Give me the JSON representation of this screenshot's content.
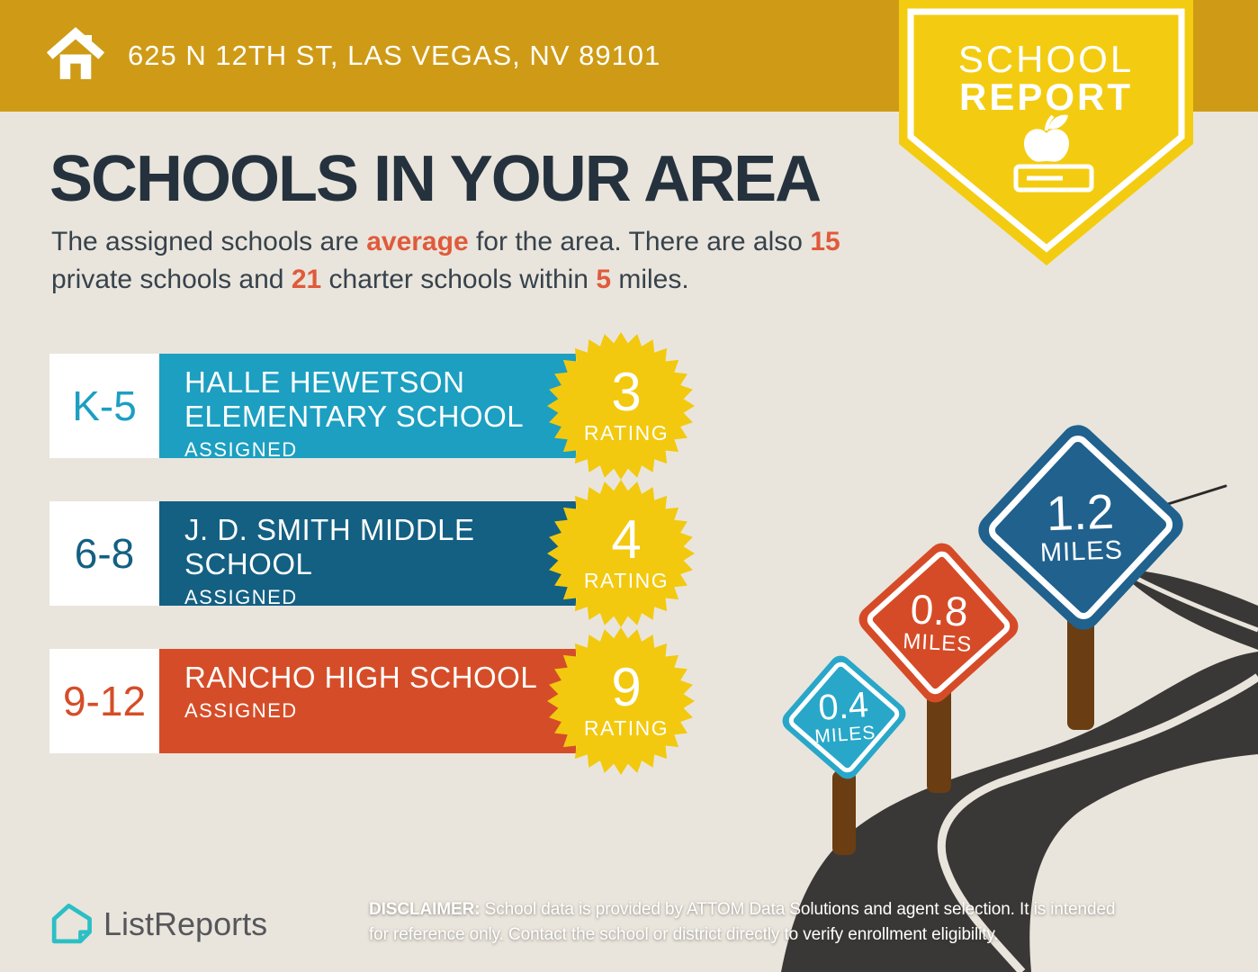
{
  "colors": {
    "banner_gold": "#CF9B16",
    "ribbon_yellow": "#F3CC12",
    "background_beige": "#E9E5DC",
    "heading_navy": "#25323E",
    "body_text": "#37424C",
    "accent_orange": "#E05A3B",
    "elementary_teal": "#1C9FC1",
    "middle_blue": "#136083",
    "high_orange": "#D54D28",
    "rating_badge_yellow": "#F2C90E",
    "road_dark": "#3A3836",
    "road_line_cream": "#E9E5DC",
    "post_brown": "#6B3D12",
    "sign_teal": "#28A7C9",
    "sign_orange": "#D64B27",
    "sign_blue": "#20618E",
    "logo_teal": "#2BBFC4",
    "logo_text_gray": "#56565B"
  },
  "banner": {
    "address": "625 N 12TH ST, LAS VEGAS, NV 89101"
  },
  "report_badge": {
    "line1": "SCHOOL",
    "line2": "REPORT"
  },
  "main": {
    "heading": "SCHOOLS IN YOUR AREA",
    "intro": {
      "seg1": "The assigned schools are ",
      "highlight1": "average",
      "seg2": " for the area. There are also ",
      "highlight2": "15",
      "seg3": "private schools and ",
      "highlight3": "21",
      "seg4": " charter schools within ",
      "highlight4": "5",
      "seg5": " miles."
    }
  },
  "schools": [
    {
      "grades": "K-5",
      "name": "HALLE HEWETSON ELEMENTARY SCHOOL",
      "status": "ASSIGNED",
      "rating": "3",
      "rating_label": "RATING",
      "color": "#1C9FC1"
    },
    {
      "grades": "6-8",
      "name": "J. D. SMITH MIDDLE SCHOOL",
      "status": "ASSIGNED",
      "rating": "4",
      "rating_label": "RATING",
      "color": "#136083"
    },
    {
      "grades": "9-12",
      "name": "RANCHO HIGH SCHOOL",
      "status": "ASSIGNED",
      "rating": "9",
      "rating_label": "RATING",
      "color": "#D54D28"
    }
  ],
  "distance_signs": [
    {
      "distance": "0.4",
      "unit": "MILES",
      "color": "#28A7C9"
    },
    {
      "distance": "0.8",
      "unit": "MILES",
      "color": "#D64B27"
    },
    {
      "distance": "1.2",
      "unit": "MILES",
      "color": "#20618E"
    }
  ],
  "footer": {
    "brand": "ListReports",
    "disclaimer_label": "DISCLAIMER:",
    "disclaimer_line1": " School data is provided by ATTOM Data Solutions and agent selection. It is intended",
    "disclaimer_line2": "for reference only. Contact the school or district directly to verify enrollment eligibility."
  }
}
